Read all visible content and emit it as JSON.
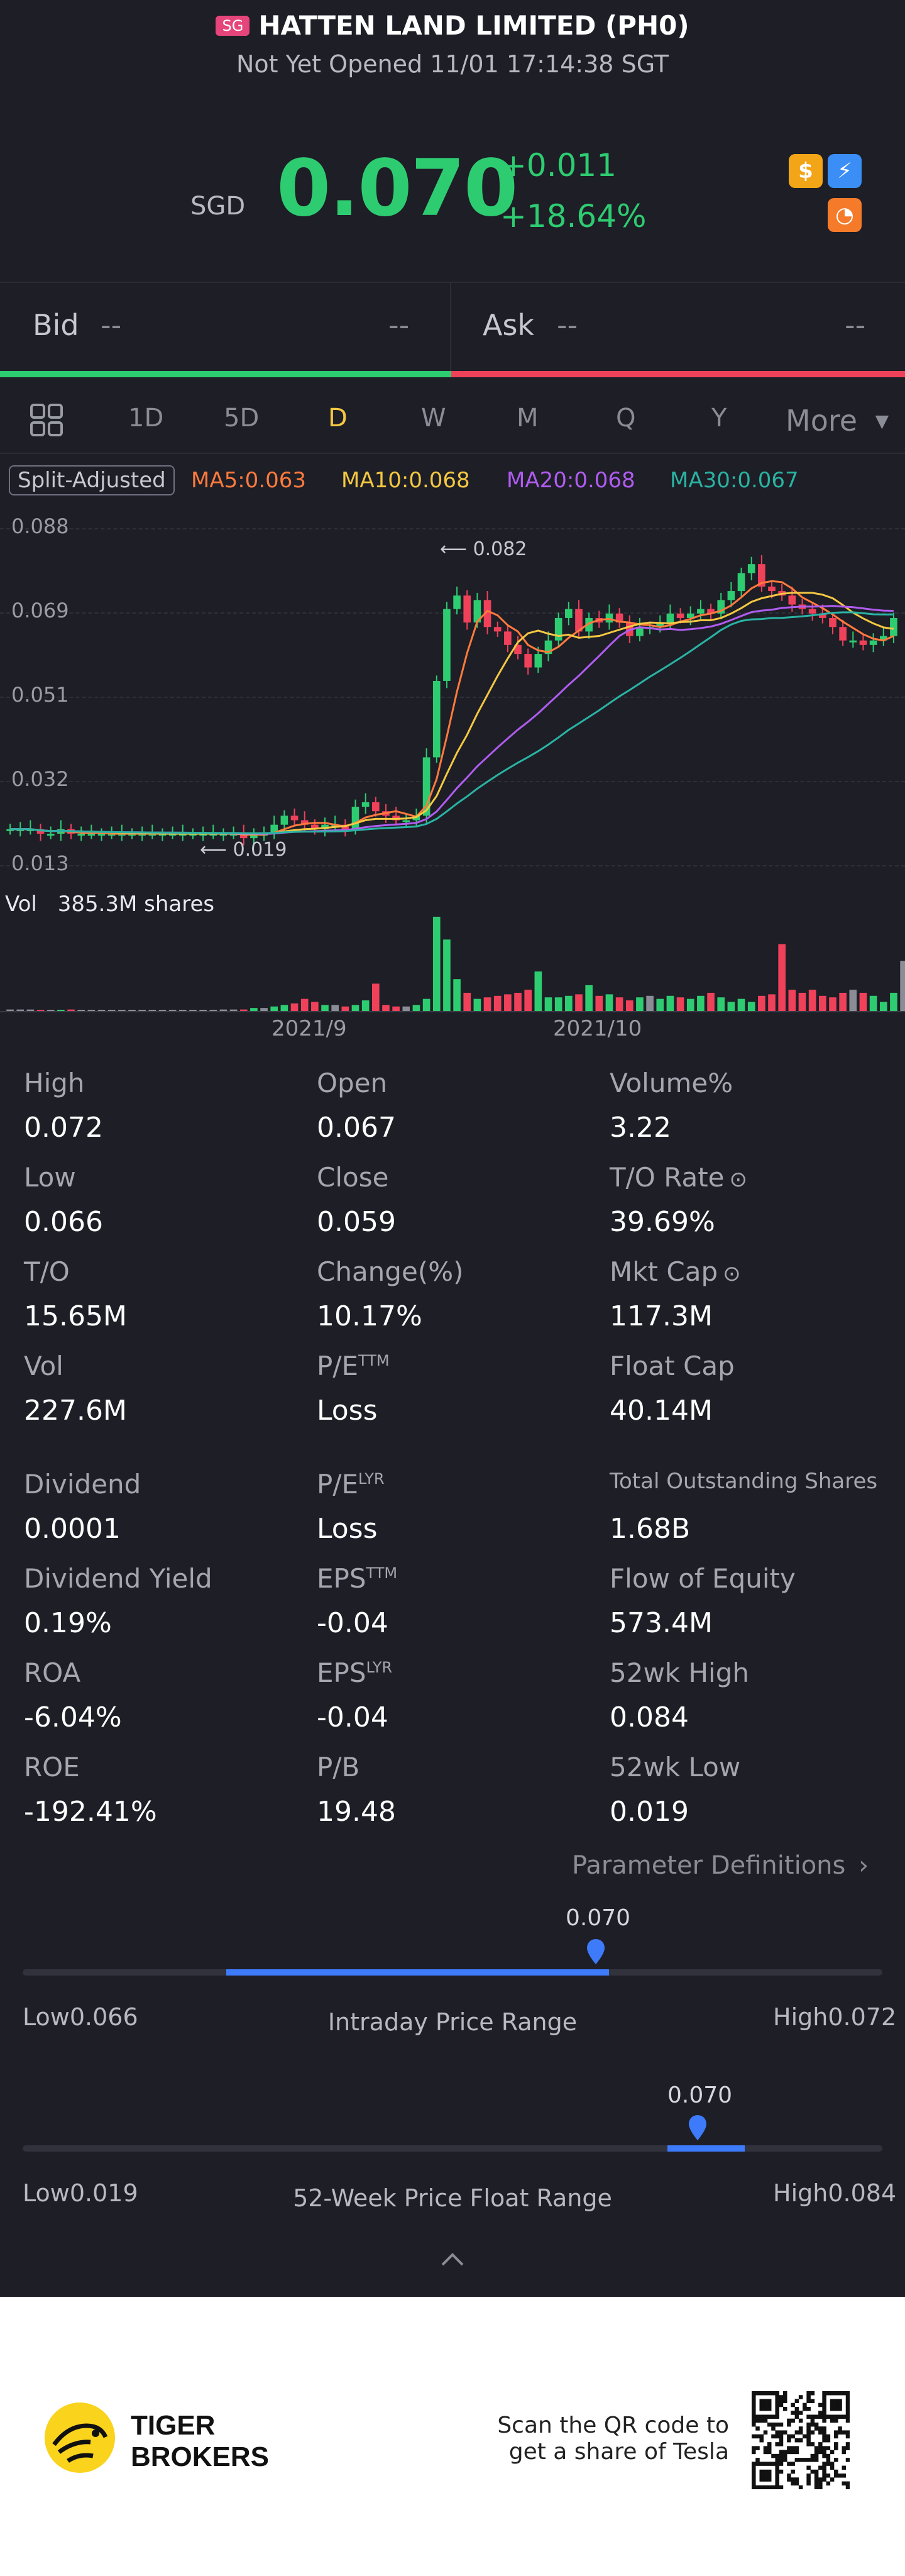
{
  "header": {
    "market_badge": "SG",
    "title": "HATTEN LAND LIMITED (PH0)",
    "subtitle": "Not Yet Opened 11/01 17:14:38 SGT"
  },
  "quote": {
    "currency": "SGD",
    "price": "0.070",
    "change": "+0.011",
    "change_pct": "+18.64%",
    "icons": [
      "dollar-icon",
      "lightning-icon",
      "chart-badge-icon"
    ]
  },
  "bid_ask": {
    "bid_label": "Bid",
    "bid_price": "--",
    "bid_size": "--",
    "ask_label": "Ask",
    "ask_price": "--",
    "ask_size": "--"
  },
  "tabs": [
    {
      "label": "1D"
    },
    {
      "label": "5D"
    },
    {
      "label": "D"
    },
    {
      "label": "W"
    },
    {
      "label": "M"
    },
    {
      "label": "Q"
    },
    {
      "label": "Y"
    },
    {
      "label": "More"
    }
  ],
  "active_tab": "D",
  "chart": {
    "split_label": "Split-Adjusted",
    "ma5": "MA5:0.063",
    "ma10": "MA10:0.068",
    "ma20": "MA20:0.068",
    "ma30": "MA30:0.067",
    "y_ticks": [
      "0.088",
      "0.069",
      "0.051",
      "0.032",
      "0.013"
    ],
    "high_marker": "0.082",
    "low_marker": "0.019",
    "vol_label": "Vol",
    "vol_value": "385.3M shares",
    "x_ticks": [
      "2021/9",
      "2021/10"
    ],
    "colors": {
      "up": "#2ecc71",
      "down": "#f0415a",
      "ma5": "#ff7a3d",
      "ma10": "#f5c842",
      "ma20": "#b05cf0",
      "ma30": "#2ab3a3"
    }
  },
  "chart_data": {
    "type": "line",
    "title": "",
    "x_ticks": [
      "2021/9",
      "2021/10"
    ],
    "ylim": [
      0.013,
      0.088
    ],
    "y_ticks": [
      0.088,
      0.069,
      0.051,
      0.032,
      0.013
    ],
    "close": [
      0.021,
      0.021,
      0.021,
      0.02,
      0.02,
      0.021,
      0.02,
      0.02,
      0.02,
      0.02,
      0.02,
      0.02,
      0.02,
      0.02,
      0.02,
      0.02,
      0.02,
      0.02,
      0.02,
      0.02,
      0.02,
      0.02,
      0.02,
      0.019,
      0.02,
      0.02,
      0.022,
      0.024,
      0.023,
      0.022,
      0.021,
      0.022,
      0.022,
      0.021,
      0.026,
      0.027,
      0.025,
      0.024,
      0.023,
      0.023,
      0.024,
      0.037,
      0.054,
      0.07,
      0.073,
      0.067,
      0.072,
      0.066,
      0.065,
      0.062,
      0.06,
      0.057,
      0.06,
      0.063,
      0.068,
      0.07,
      0.065,
      0.068,
      0.067,
      0.069,
      0.067,
      0.064,
      0.066,
      0.066,
      0.067,
      0.069,
      0.068,
      0.069,
      0.07,
      0.069,
      0.072,
      0.074,
      0.078,
      0.08,
      0.075,
      0.074,
      0.073,
      0.071,
      0.07,
      0.069,
      0.068,
      0.066,
      0.063,
      0.063,
      0.062,
      0.063,
      0.064,
      0.068
    ],
    "volume_relative": [
      1,
      1,
      1,
      0,
      0,
      0,
      1,
      0,
      0,
      0,
      0,
      0,
      0,
      0,
      0,
      0,
      0,
      0,
      0,
      0,
      0,
      1,
      1,
      1,
      2,
      2,
      3,
      4,
      5,
      8,
      6,
      4,
      4,
      3,
      4,
      7,
      18,
      4,
      3,
      3,
      4,
      8,
      62,
      47,
      21,
      12,
      8,
      9,
      10,
      11,
      12,
      14,
      26,
      9,
      9,
      10,
      11,
      17,
      10,
      11,
      9,
      7,
      9,
      10,
      8,
      10,
      9,
      8,
      10,
      12,
      9,
      6,
      8,
      6,
      10,
      11,
      44,
      14,
      12,
      14,
      10,
      9,
      12,
      14,
      12,
      10,
      6,
      12,
      33
    ]
  },
  "stats": [
    {
      "label": "High",
      "value": "0.072"
    },
    {
      "label": "Open",
      "value": "0.067"
    },
    {
      "label": "Volume%",
      "value": "3.22"
    },
    {
      "label": "Low",
      "value": "0.066"
    },
    {
      "label": "Close",
      "value": "0.059"
    },
    {
      "label": "T/O Rate",
      "value": "39.69%"
    },
    {
      "label": "T/O",
      "value": "15.65M"
    },
    {
      "label": "Change(%)",
      "value": "10.17%"
    },
    {
      "label": "Mkt Cap",
      "value": "117.3M"
    },
    {
      "label": "Vol",
      "value": "227.6M"
    },
    {
      "label": "P/E",
      "sup": "TTM",
      "value": "Loss"
    },
    {
      "label": "Float Cap",
      "value": "40.14M"
    },
    {
      "label": "Dividend",
      "value": "0.0001"
    },
    {
      "label": "P/E",
      "sup": "LYR",
      "value": "Loss"
    },
    {
      "label": "Total Outstanding Shares",
      "value": "1.68B"
    },
    {
      "label": "Dividend Yield",
      "value": "0.19%"
    },
    {
      "label": "EPS",
      "sup": "TTM",
      "value": "-0.04"
    },
    {
      "label": "Flow of Equity",
      "value": "573.4M"
    },
    {
      "label": "ROA",
      "value": "-6.04%"
    },
    {
      "label": "EPS",
      "sup": "LYR",
      "value": "-0.04"
    },
    {
      "label": "52wk High",
      "value": "0.084"
    },
    {
      "label": "ROE",
      "value": "-192.41%"
    },
    {
      "label": "P/B",
      "value": "19.48"
    },
    {
      "label": "52wk Low",
      "value": "0.019"
    }
  ],
  "param_link": "Parameter Definitions",
  "intraday": {
    "current": "0.070",
    "low_label": "Low",
    "low": "0.066",
    "high_label": "High",
    "high": "0.072",
    "title": "Intraday Price Range",
    "fill_from": 0.237,
    "fill_to": 0.682
  },
  "week52": {
    "current": "0.070",
    "low_label": "Low",
    "low": "0.019",
    "high_label": "High",
    "high": "0.084",
    "title": "52-Week Price Float Range",
    "fill_from": 0.75,
    "fill_to": 0.84
  },
  "footer": {
    "brand_line1": "TIGER",
    "brand_line2": "BROKERS",
    "cta_line1": "Scan the QR code to",
    "cta_line2": "get a share of Tesla"
  }
}
